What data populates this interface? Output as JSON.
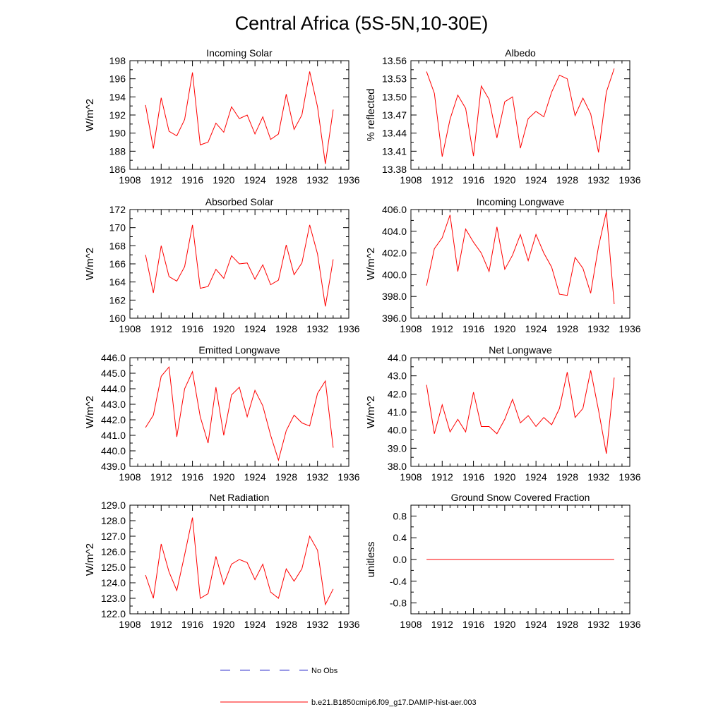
{
  "figure": {
    "title": "Central Africa (5S-5N,10-30E)"
  },
  "colors": {
    "model_line": "#ff0000",
    "obs_line": "#3333cc",
    "axes": "#000000"
  },
  "legend": {
    "position": "bottom-center",
    "entries": [
      {
        "label": "No Obs",
        "style": "dashed",
        "color": "#3333cc"
      },
      {
        "label": "b.e21.B1850cmip6.f09_g17.DAMIP-hist-aer.003",
        "style": "solid",
        "color": "#ff0000"
      }
    ]
  },
  "chart_data": [
    {
      "type": "line",
      "title": "Incoming Solar",
      "ylabel": "W/m^2",
      "xlim": [
        1908,
        1936
      ],
      "ylim": [
        186,
        198
      ],
      "xticks": [
        "1908",
        "1912",
        "1916",
        "1920",
        "1924",
        "1928",
        "1932",
        "1936"
      ],
      "yticks": [
        "186",
        "188",
        "190",
        "192",
        "194",
        "196",
        "198"
      ],
      "x": [
        1910,
        1911,
        1912,
        1913,
        1914,
        1915,
        1916,
        1917,
        1918,
        1919,
        1920,
        1921,
        1922,
        1923,
        1924,
        1925,
        1926,
        1927,
        1928,
        1929,
        1930,
        1931,
        1932,
        1933,
        1934
      ],
      "series": [
        {
          "values": [
            193.1,
            188.3,
            193.9,
            190.2,
            189.7,
            191.5,
            196.7,
            188.7,
            189.0,
            191.1,
            190.1,
            192.9,
            191.6,
            192.0,
            189.9,
            191.8,
            189.3,
            189.9,
            194.3,
            190.4,
            192.0,
            196.8,
            192.9,
            186.6,
            192.6
          ]
        }
      ]
    },
    {
      "type": "line",
      "title": "Albedo",
      "ylabel": "% reflected",
      "xlim": [
        1908,
        1936
      ],
      "ylim": [
        13.38,
        13.56
      ],
      "xticks": [
        "1908",
        "1912",
        "1916",
        "1920",
        "1924",
        "1928",
        "1932",
        "1936"
      ],
      "yticks": [
        "13.38",
        "13.41",
        "13.44",
        "13.47",
        "13.50",
        "13.53",
        "13.56"
      ],
      "x": [
        1910,
        1911,
        1912,
        1913,
        1914,
        1915,
        1916,
        1917,
        1918,
        1919,
        1920,
        1921,
        1922,
        1923,
        1924,
        1925,
        1926,
        1927,
        1928,
        1929,
        1930,
        1931,
        1932,
        1933,
        1934
      ],
      "series": [
        {
          "values": [
            13.542,
            13.506,
            13.401,
            13.463,
            13.503,
            13.481,
            13.402,
            13.518,
            13.496,
            13.432,
            13.492,
            13.5,
            13.415,
            13.464,
            13.476,
            13.467,
            13.508,
            13.536,
            13.53,
            13.469,
            13.498,
            13.472,
            13.408,
            13.508,
            13.547
          ]
        }
      ]
    },
    {
      "type": "line",
      "title": "Absorbed Solar",
      "ylabel": "W/m^2",
      "xlim": [
        1908,
        1936
      ],
      "ylim": [
        160,
        172
      ],
      "xticks": [
        "1908",
        "1912",
        "1916",
        "1920",
        "1924",
        "1928",
        "1932",
        "1936"
      ],
      "yticks": [
        "160",
        "162",
        "164",
        "166",
        "168",
        "170",
        "172"
      ],
      "x": [
        1910,
        1911,
        1912,
        1913,
        1914,
        1915,
        1916,
        1917,
        1918,
        1919,
        1920,
        1921,
        1922,
        1923,
        1924,
        1925,
        1926,
        1927,
        1928,
        1929,
        1930,
        1931,
        1932,
        1933,
        1934
      ],
      "series": [
        {
          "values": [
            167.0,
            162.8,
            168.0,
            164.6,
            164.1,
            165.7,
            170.3,
            163.3,
            163.5,
            165.4,
            164.4,
            166.9,
            166.0,
            166.1,
            164.3,
            165.9,
            163.7,
            164.2,
            168.1,
            164.8,
            166.1,
            170.3,
            167.1,
            161.3,
            166.5
          ]
        }
      ]
    },
    {
      "type": "line",
      "title": "Incoming Longwave",
      "ylabel": "W/m^2",
      "xlim": [
        1908,
        1936
      ],
      "ylim": [
        396.0,
        406.0
      ],
      "xticks": [
        "1908",
        "1912",
        "1916",
        "1920",
        "1924",
        "1928",
        "1932",
        "1936"
      ],
      "yticks": [
        "396.0",
        "398.0",
        "400.0",
        "402.0",
        "404.0",
        "406.0"
      ],
      "x": [
        1910,
        1911,
        1912,
        1913,
        1914,
        1915,
        1916,
        1917,
        1918,
        1919,
        1920,
        1921,
        1922,
        1923,
        1924,
        1925,
        1926,
        1927,
        1928,
        1929,
        1930,
        1931,
        1932,
        1933,
        1934
      ],
      "series": [
        {
          "values": [
            399.0,
            402.4,
            403.4,
            405.5,
            400.3,
            404.2,
            403.0,
            402.0,
            400.3,
            404.4,
            400.5,
            401.8,
            403.7,
            401.3,
            403.7,
            402.0,
            400.7,
            398.2,
            398.1,
            401.6,
            400.6,
            398.3,
            402.6,
            405.8,
            397.3
          ]
        }
      ]
    },
    {
      "type": "line",
      "title": "Emitted Longwave",
      "ylabel": "W/m^2",
      "xlim": [
        1908,
        1936
      ],
      "ylim": [
        439.0,
        446.0
      ],
      "xticks": [
        "1908",
        "1912",
        "1916",
        "1920",
        "1924",
        "1928",
        "1932",
        "1936"
      ],
      "yticks": [
        "439.0",
        "440.0",
        "441.0",
        "442.0",
        "443.0",
        "444.0",
        "445.0",
        "446.0"
      ],
      "x": [
        1910,
        1911,
        1912,
        1913,
        1914,
        1915,
        1916,
        1917,
        1918,
        1919,
        1920,
        1921,
        1922,
        1923,
        1924,
        1925,
        1926,
        1927,
        1928,
        1929,
        1930,
        1931,
        1932,
        1933,
        1934
      ],
      "series": [
        {
          "values": [
            441.5,
            442.3,
            444.8,
            445.4,
            440.9,
            444.0,
            445.1,
            442.2,
            440.5,
            444.1,
            441.0,
            443.6,
            444.1,
            442.2,
            443.9,
            442.9,
            441.0,
            439.4,
            441.3,
            442.3,
            441.8,
            441.6,
            443.7,
            444.5,
            440.2
          ]
        }
      ]
    },
    {
      "type": "line",
      "title": "Net Longwave",
      "ylabel": "W/m^2",
      "xlim": [
        1908,
        1936
      ],
      "ylim": [
        38.0,
        44.0
      ],
      "xticks": [
        "1908",
        "1912",
        "1916",
        "1920",
        "1924",
        "1928",
        "1932",
        "1936"
      ],
      "yticks": [
        "38.0",
        "39.0",
        "40.0",
        "41.0",
        "42.0",
        "43.0",
        "44.0"
      ],
      "x": [
        1910,
        1911,
        1912,
        1913,
        1914,
        1915,
        1916,
        1917,
        1918,
        1919,
        1920,
        1921,
        1922,
        1923,
        1924,
        1925,
        1926,
        1927,
        1928,
        1929,
        1930,
        1931,
        1932,
        1933,
        1934
      ],
      "series": [
        {
          "values": [
            42.5,
            39.8,
            41.4,
            39.9,
            40.6,
            39.9,
            42.1,
            40.2,
            40.2,
            39.8,
            40.6,
            41.7,
            40.4,
            40.8,
            40.2,
            40.7,
            40.3,
            41.2,
            43.2,
            40.7,
            41.2,
            43.3,
            41.1,
            38.7,
            42.9
          ]
        }
      ]
    },
    {
      "type": "line",
      "title": "Net Radiation",
      "ylabel": "W/m^2",
      "xlim": [
        1908,
        1936
      ],
      "ylim": [
        122.0,
        129.0
      ],
      "xticks": [
        "1908",
        "1912",
        "1916",
        "1920",
        "1924",
        "1928",
        "1932",
        "1936"
      ],
      "yticks": [
        "122.0",
        "123.0",
        "124.0",
        "125.0",
        "126.0",
        "127.0",
        "128.0",
        "129.0"
      ],
      "x": [
        1910,
        1911,
        1912,
        1913,
        1914,
        1915,
        1916,
        1917,
        1918,
        1919,
        1920,
        1921,
        1922,
        1923,
        1924,
        1925,
        1926,
        1927,
        1928,
        1929,
        1930,
        1931,
        1932,
        1933,
        1934
      ],
      "series": [
        {
          "values": [
            124.5,
            123.0,
            126.5,
            124.7,
            123.5,
            125.8,
            128.2,
            123.0,
            123.3,
            125.7,
            123.9,
            125.2,
            125.5,
            125.3,
            124.2,
            125.2,
            123.4,
            123.0,
            124.9,
            124.1,
            124.9,
            127.0,
            126.1,
            122.6,
            123.6
          ]
        }
      ]
    },
    {
      "type": "line",
      "title": "Ground Snow Covered Fraction",
      "ylabel": "unitless",
      "xlim": [
        1908,
        1936
      ],
      "ylim": [
        -1.0,
        1.0
      ],
      "xticks": [
        "1908",
        "1912",
        "1916",
        "1920",
        "1924",
        "1928",
        "1932",
        "1936"
      ],
      "yticks": [
        "-0.8",
        "-0.4",
        "0.0",
        "0.4",
        "0.8"
      ],
      "ytick_values": [
        -0.8,
        -0.4,
        0.0,
        0.4,
        0.8
      ],
      "x": [
        1910,
        1911,
        1912,
        1913,
        1914,
        1915,
        1916,
        1917,
        1918,
        1919,
        1920,
        1921,
        1922,
        1923,
        1924,
        1925,
        1926,
        1927,
        1928,
        1929,
        1930,
        1931,
        1932,
        1933,
        1934
      ],
      "series": [
        {
          "values": [
            0,
            0,
            0,
            0,
            0,
            0,
            0,
            0,
            0,
            0,
            0,
            0,
            0,
            0,
            0,
            0,
            0,
            0,
            0,
            0,
            0,
            0,
            0,
            0,
            0
          ]
        }
      ]
    }
  ]
}
